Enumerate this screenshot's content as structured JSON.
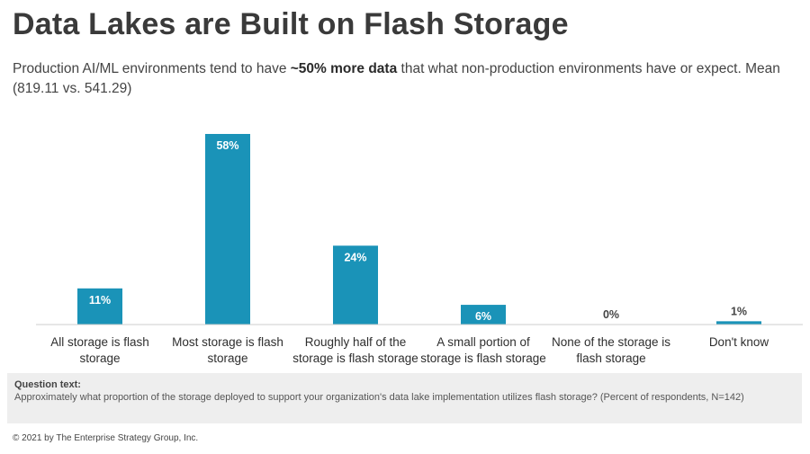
{
  "title": "Data Lakes are Built on Flash Storage",
  "subtitle": {
    "before": "Production AI/ML environments tend to have ",
    "bold": "~50% more data",
    "after": " that what non-production environments have or expect. Mean (819.11 vs. 541.29)"
  },
  "chart_data": {
    "type": "bar",
    "categories": [
      [
        "All storage is flash",
        "storage"
      ],
      [
        "Most storage is flash",
        "storage"
      ],
      [
        "Roughly half of the",
        "storage is flash storage"
      ],
      [
        "A small portion of",
        "storage is flash storage"
      ],
      [
        "None of the storage is",
        "flash storage"
      ],
      [
        "Don't know"
      ]
    ],
    "values": [
      11,
      58,
      24,
      6,
      0,
      1
    ],
    "value_labels": [
      "11%",
      "58%",
      "24%",
      "6%",
      "0%",
      "1%"
    ],
    "ylim": [
      0,
      58
    ],
    "bar_color": "#1a93b8",
    "axis_color": "#cccccc",
    "grid": false
  },
  "question": {
    "heading": "Question text:",
    "body": "Approximately what proportion of the storage deployed to support your organization's data lake implementation utilizes flash storage? (Percent of respondents, N=142)"
  },
  "footer": "© 2021 by The Enterprise Strategy Group, Inc."
}
